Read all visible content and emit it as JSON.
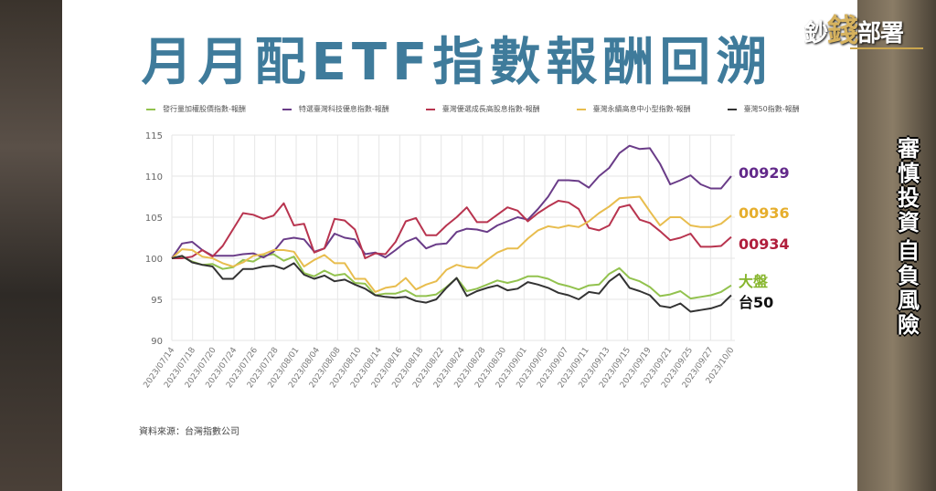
{
  "title": "月月配ETF指數報酬回溯",
  "source": "資料來源：台灣指數公司",
  "logo": {
    "part1": "鈔",
    "part2": "錢",
    "part3": "部署"
  },
  "disclaimer": {
    "line1": "審慎投資",
    "line2": "自負風險"
  },
  "chart_data": {
    "type": "line",
    "title": "月月配ETF指數報酬回溯",
    "ylim": [
      90,
      115
    ],
    "yticks": [
      90,
      95,
      100,
      105,
      110,
      115
    ],
    "grid": true,
    "legend_position": "top",
    "xtick_labels": [
      "2023/07/14",
      "2023/07/18",
      "2023/07/20",
      "2023/07/24",
      "2023/07/26",
      "2023/07/28",
      "2023/08/01",
      "2023/08/04",
      "2023/08/08",
      "2023/08/10",
      "2023/08/14",
      "2023/08/16",
      "2023/08/18",
      "2023/08/22",
      "2023/08/24",
      "2023/08/28",
      "2023/08/30",
      "2023/09/01",
      "2023/09/05",
      "2023/09/07",
      "2023/09/11",
      "2023/09/13",
      "2023/09/15",
      "2023/09/19",
      "2023/09/21",
      "2023/09/25",
      "2023/09/27",
      "2023/10/0"
    ],
    "series": [
      {
        "name": "發行量加權股價指數-報酬",
        "end_label": "大盤",
        "color": "#92c24e",
        "label_color": "#86b52c",
        "values": [
          100,
          100.2,
          99.6,
          99.2,
          99.3,
          98.7,
          98.9,
          99.8,
          99.6,
          100.3,
          100.5,
          99.7,
          100.2,
          98.2,
          97.8,
          98.5,
          97.9,
          98.1,
          97,
          96.9,
          95.5,
          95.7,
          95.7,
          96.1,
          95.4,
          95.4,
          95.6,
          96.5,
          97.6,
          96,
          96.3,
          96.8,
          97.3,
          97,
          97.3,
          97.8,
          97.8,
          97.5,
          96.9,
          96.6,
          96.2,
          96.7,
          96.8,
          98.1,
          98.8,
          97.6,
          97.2,
          96.5,
          95.4,
          95.6,
          96,
          95.1,
          95.3,
          95.5,
          95.9,
          96.7
        ]
      },
      {
        "name": "特選臺灣科技優息指數-報酬",
        "end_label": "00929",
        "color": "#6a3c88",
        "label_color": "#62298a",
        "values": [
          100,
          101.8,
          102,
          101,
          100.3,
          100.3,
          100.3,
          100.5,
          100.6,
          100.1,
          100.8,
          102.3,
          102.5,
          102.3,
          100.8,
          101.2,
          103,
          102.5,
          102.3,
          100.5,
          100.7,
          100.1,
          101,
          102,
          102.5,
          101.2,
          101.7,
          101.8,
          103.2,
          103.6,
          103.5,
          103.2,
          104,
          104.5,
          105,
          104.7,
          106,
          107.5,
          109.5,
          109.5,
          109.4,
          108.6,
          110,
          111,
          112.8,
          113.7,
          113.3,
          113.4,
          111.5,
          109,
          109.5,
          110.1,
          109,
          108.5,
          108.5,
          110
        ]
      },
      {
        "name": "臺灣優選成長高股息指數-報酬",
        "end_label": "00934",
        "color": "#b8344f",
        "label_color": "#b01e3c",
        "values": [
          100,
          100,
          100.2,
          101,
          100.2,
          101.5,
          103.5,
          105.5,
          105.3,
          104.8,
          105.2,
          106.7,
          104,
          104.2,
          100.7,
          101.2,
          104.8,
          104.6,
          103.5,
          100,
          100.6,
          100.5,
          102,
          104.5,
          104.9,
          102.8,
          102.8,
          104,
          105,
          106.2,
          104.4,
          104.4,
          105.3,
          106.2,
          105.8,
          104.5,
          105.5,
          106.3,
          107,
          106.8,
          106,
          103.7,
          103.4,
          104,
          106.2,
          106.5,
          104.7,
          104.3,
          103.3,
          102.2,
          102.5,
          103,
          101.4,
          101.4,
          101.5,
          102.6
        ]
      },
      {
        "name": "臺灣永續高息中小型指數-報酬",
        "end_label": "00936",
        "color": "#e8bd4e",
        "label_color": "#e6ae2c",
        "values": [
          100,
          101.1,
          101,
          100.2,
          100,
          99.4,
          99,
          99.5,
          100.3,
          100.5,
          101,
          101,
          100.8,
          99,
          99.8,
          100.4,
          99.4,
          99.4,
          97.5,
          97.5,
          95.9,
          96.4,
          96.6,
          97.6,
          96.2,
          96.8,
          97.2,
          98.6,
          99.2,
          98.9,
          98.8,
          99.8,
          100.7,
          101.2,
          101.2,
          102.4,
          103.4,
          103.9,
          103.7,
          104,
          103.8,
          104.5,
          105.5,
          106.3,
          107.3,
          107.4,
          107.5,
          105.7,
          104,
          105,
          105,
          104,
          103.8,
          103.8,
          104.2,
          105.2
        ]
      },
      {
        "name": "臺灣50指數-報酬",
        "end_label": "台50",
        "color": "#333333",
        "label_color": "#111111",
        "values": [
          100,
          100.3,
          99.5,
          99.2,
          99,
          97.5,
          97.5,
          98.7,
          98.7,
          99,
          99.1,
          98.7,
          99.4,
          98,
          97.5,
          97.9,
          97.2,
          97.4,
          96.8,
          96.3,
          95.5,
          95.3,
          95.2,
          95.3,
          94.8,
          94.6,
          95,
          96.4,
          97.6,
          95.4,
          96,
          96.4,
          96.7,
          96.1,
          96.3,
          97.1,
          96.8,
          96.4,
          95.8,
          95.5,
          95,
          95.9,
          95.7,
          97.2,
          98.1,
          96.4,
          96,
          95.5,
          94.2,
          94,
          94.5,
          93.5,
          93.7,
          93.9,
          94.3,
          95.5
        ]
      }
    ]
  }
}
